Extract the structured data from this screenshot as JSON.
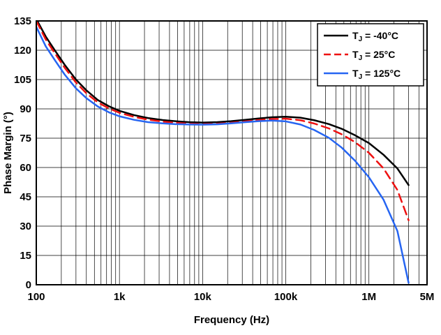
{
  "chart_data": {
    "type": "line",
    "title": "",
    "xlabel": "Frequency (Hz)",
    "ylabel": "Phase Margin (°)",
    "x_scale": "log",
    "xlim": [
      100,
      5000000
    ],
    "ylim": [
      0,
      135
    ],
    "y_tick_step": 15,
    "grid": true,
    "legend_position": "top-right",
    "x_ticks": [
      {
        "value": 100,
        "label": "100"
      },
      {
        "value": 1000,
        "label": "1k"
      },
      {
        "value": 10000,
        "label": "10k"
      },
      {
        "value": 100000,
        "label": "100k"
      },
      {
        "value": 1000000,
        "label": "1M"
      },
      {
        "value": 5000000,
        "label": "5M"
      }
    ],
    "x": [
      100,
      130,
      170,
      220,
      300,
      400,
      550,
      750,
      1000,
      1500,
      2200,
      3300,
      4700,
      6800,
      10000,
      15000,
      22000,
      33000,
      47000,
      68000,
      100000,
      150000,
      220000,
      330000,
      470000,
      680000,
      1000000,
      1500000,
      2200000,
      3000000
    ],
    "series": [
      {
        "name": "TJ = -40°C",
        "label_pre": "T",
        "label_sub": "J",
        "label_post": " = -40°C",
        "color": "#000000",
        "style": "solid",
        "y": [
          136,
          127,
          119.5,
          112.5,
          105,
          99.5,
          94.5,
          91.3,
          89,
          86.8,
          85.3,
          84.3,
          83.7,
          83.2,
          83,
          83.2,
          83.7,
          84.4,
          85.1,
          85.7,
          86,
          85.5,
          84.2,
          82.2,
          79.8,
          76.5,
          72.5,
          66.5,
          59.5,
          51
        ]
      },
      {
        "name": "TJ = 25°C",
        "label_pre": "T",
        "label_sub": "J",
        "label_post": " = 25°C",
        "color": "#ee1111",
        "style": "dashed",
        "y": [
          135,
          125.5,
          118,
          111,
          103.5,
          98,
          93.3,
          90.2,
          88,
          85.9,
          84.5,
          83.5,
          82.9,
          82.4,
          82.2,
          82.4,
          82.9,
          83.6,
          84.3,
          84.8,
          85,
          84.2,
          82.5,
          80,
          77,
          73,
          67.5,
          59.5,
          48.5,
          33
        ]
      },
      {
        "name": "TJ = 125°C",
        "label_pre": "T",
        "label_sub": "J",
        "label_post": " = 125°C",
        "color": "#2665f2",
        "style": "solid",
        "y": [
          132,
          122,
          114.5,
          107.5,
          100.5,
          95.5,
          91.2,
          88.2,
          86.2,
          84.4,
          83.2,
          82.6,
          82.2,
          82,
          81.9,
          82.1,
          82.6,
          83.2,
          83.7,
          84,
          83.6,
          82,
          79.2,
          75.2,
          70.2,
          63.5,
          55,
          43.5,
          27.5,
          1
        ]
      }
    ],
    "style": {
      "grid_color": "#000000",
      "border_color": "#000000",
      "background": "#ffffff",
      "line_width": 2.5
    }
  }
}
